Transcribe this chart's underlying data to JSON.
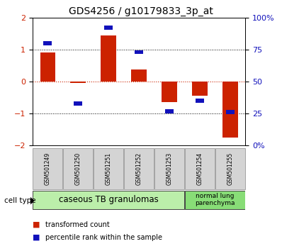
{
  "title": "GDS4256 / g10179833_3p_at",
  "categories": [
    "GSM501249",
    "GSM501250",
    "GSM501251",
    "GSM501252",
    "GSM501253",
    "GSM501254",
    "GSM501255"
  ],
  "red_values": [
    0.9,
    -0.05,
    1.45,
    0.38,
    -0.65,
    -0.45,
    -1.75
  ],
  "blue_percentiles": [
    80,
    33,
    92,
    73,
    27,
    35,
    26
  ],
  "ylim_left": [
    -2,
    2
  ],
  "ylim_right": [
    0,
    100
  ],
  "yticks_left": [
    -2,
    -1,
    0,
    1,
    2
  ],
  "yticks_right": [
    0,
    25,
    50,
    75,
    100
  ],
  "yticklabels_right": [
    "0%",
    "25",
    "50",
    "75",
    "100%"
  ],
  "group1_label": "caseous TB granulomas",
  "group2_label": "normal lung\nparenchyma",
  "cell_type_label": "cell type",
  "legend_red": "transformed count",
  "legend_blue": "percentile rank within the sample",
  "red_color": "#cc2200",
  "blue_color": "#1111bb",
  "group1_color": "#bbeeaa",
  "group2_color": "#88dd77",
  "bg_color": "#d4d4d4",
  "title_fontsize": 10,
  "tick_fontsize": 8,
  "label_fontsize": 7,
  "cat_fontsize": 5.5
}
